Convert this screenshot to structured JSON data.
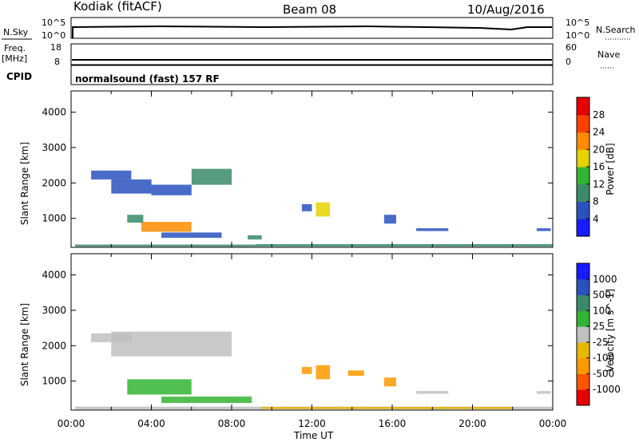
{
  "header": {
    "station": "Kodiak (fitACF)",
    "beam": "Beam 08",
    "date": "10/Aug/2016"
  },
  "summary_panels": {
    "nsky": {
      "label": "N.Sky",
      "tick_top": "10^5",
      "tick_bottom": "10^0"
    },
    "nsearch": {
      "label": "N.Search",
      "tick_top": "10^5",
      "tick_bottom": "10^0"
    },
    "freq": {
      "label_top": "Freq.",
      "label_bottom": "[MHz]",
      "tick_top": "18",
      "tick_bottom": "8"
    },
    "nave": {
      "label": "Nave",
      "tick_top": "60",
      "tick_bottom": "0"
    },
    "cpid": {
      "label": "CPID",
      "value": "normalsound (fast) 157 RF"
    }
  },
  "chart_data": [
    {
      "type": "heatmap",
      "name": "power",
      "ylabel": "Slant Range [km]",
      "ylim": [
        180,
        4600
      ],
      "yticks": [
        1000,
        2000,
        3000,
        4000
      ],
      "xlim_hours": [
        0,
        24
      ],
      "colorbar": {
        "label": "Power [dB]",
        "ticks": [
          "4",
          "8",
          "12",
          "16",
          "20",
          "24",
          "28"
        ],
        "colors": [
          "#1a1aff",
          "#2a52be",
          "#3a8a6a",
          "#32b432",
          "#e6d200",
          "#ff8c00",
          "#ff4000",
          "#e60000"
        ],
        "range": [
          0,
          32
        ]
      },
      "regions": [
        {
          "t0": 0.2,
          "t1": 9.2,
          "r0": 200,
          "r1": 260,
          "v": 8
        },
        {
          "t0": 9.2,
          "t1": 24,
          "r0": 200,
          "r1": 270,
          "v": 9
        },
        {
          "t0": 3.5,
          "t1": 6.0,
          "r0": 620,
          "r1": 900,
          "v": 22
        },
        {
          "t0": 2.8,
          "t1": 3.6,
          "r0": 880,
          "r1": 1100,
          "v": 10
        },
        {
          "t0": 2.0,
          "t1": 4.0,
          "r0": 1700,
          "r1": 2100,
          "v": 6
        },
        {
          "t0": 4.0,
          "t1": 6.0,
          "r0": 1650,
          "r1": 1950,
          "v": 5
        },
        {
          "t0": 6.0,
          "t1": 8.0,
          "r0": 1950,
          "r1": 2400,
          "v": 8
        },
        {
          "t0": 1.0,
          "t1": 3.0,
          "r0": 2100,
          "r1": 2350,
          "v": 6
        },
        {
          "t0": 4.5,
          "t1": 7.5,
          "r0": 450,
          "r1": 600,
          "v": 6
        },
        {
          "t0": 11.5,
          "t1": 12.0,
          "r0": 1200,
          "r1": 1400,
          "v": 6
        },
        {
          "t0": 12.2,
          "t1": 12.9,
          "r0": 1050,
          "r1": 1450,
          "v": 18
        },
        {
          "t0": 15.6,
          "t1": 16.2,
          "r0": 850,
          "r1": 1100,
          "v": 6
        },
        {
          "t0": 17.2,
          "t1": 18.8,
          "r0": 640,
          "r1": 720,
          "v": 5
        },
        {
          "t0": 23.2,
          "t1": 23.9,
          "r0": 640,
          "r1": 720,
          "v": 6
        },
        {
          "t0": 8.8,
          "t1": 9.5,
          "r0": 400,
          "r1": 520,
          "v": 8
        }
      ]
    },
    {
      "type": "heatmap",
      "name": "velocity",
      "ylabel": "Slant Range [km]",
      "ylim": [
        180,
        4600
      ],
      "yticks": [
        1000,
        2000,
        3000,
        4000
      ],
      "xlim_hours": [
        0,
        24
      ],
      "xticks": [
        "00:00",
        "04:00",
        "08:00",
        "12:00",
        "16:00",
        "20:00",
        "00:00"
      ],
      "xlabel": "Time UT",
      "colorbar": {
        "label": "Velocity [m s^-1]",
        "ticks": [
          "-1000",
          "-500",
          "-100",
          "-25",
          "25",
          "100",
          "500",
          "1000"
        ],
        "colors": [
          "#e60000",
          "#ff5500",
          "#ff9900",
          "#e6b800",
          "#c0c0c0",
          "#32b432",
          "#3a8a6a",
          "#2a52be",
          "#1a1aff"
        ]
      },
      "regions": [
        {
          "t0": 0.2,
          "t1": 24,
          "r0": 200,
          "r1": 280,
          "v": "#c0c0c0"
        },
        {
          "t0": 9.5,
          "t1": 22,
          "r0": 210,
          "r1": 270,
          "v": "#e6b800"
        },
        {
          "t0": 2.8,
          "t1": 6.0,
          "r0": 620,
          "r1": 1050,
          "v": "#32b432"
        },
        {
          "t0": 4.5,
          "t1": 9.0,
          "r0": 380,
          "r1": 560,
          "v": "#32b432"
        },
        {
          "t0": 2.0,
          "t1": 8.0,
          "r0": 1700,
          "r1": 2400,
          "v": "#c0c0c0"
        },
        {
          "t0": 1.0,
          "t1": 3.0,
          "r0": 2100,
          "r1": 2350,
          "v": "#c0c0c0"
        },
        {
          "t0": 12.2,
          "t1": 12.9,
          "r0": 1050,
          "r1": 1450,
          "v": "#ff9900"
        },
        {
          "t0": 11.5,
          "t1": 12.0,
          "r0": 1200,
          "r1": 1400,
          "v": "#ff9900"
        },
        {
          "t0": 13.8,
          "t1": 14.6,
          "r0": 1150,
          "r1": 1300,
          "v": "#ff9900"
        },
        {
          "t0": 15.6,
          "t1": 16.2,
          "r0": 850,
          "r1": 1100,
          "v": "#ff9900"
        },
        {
          "t0": 17.2,
          "t1": 18.8,
          "r0": 640,
          "r1": 720,
          "v": "#c0c0c0"
        },
        {
          "t0": 23.2,
          "t1": 23.9,
          "r0": 640,
          "r1": 720,
          "v": "#c0c0c0"
        }
      ]
    }
  ]
}
